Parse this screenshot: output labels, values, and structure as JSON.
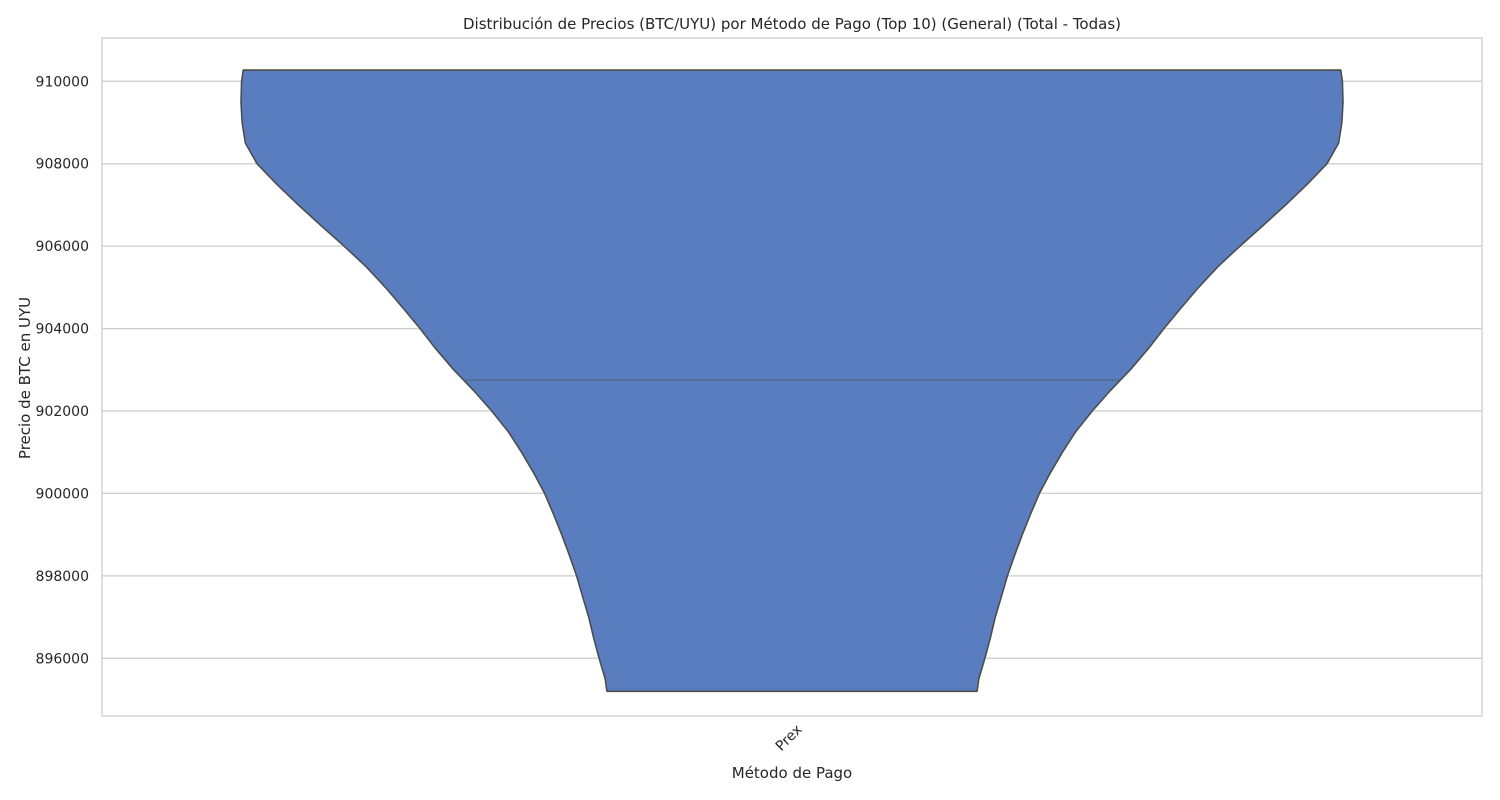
{
  "chart_data": {
    "type": "violin",
    "title": "Distribución de Precios (BTC/UYU) por Método de Pago (Top 10) (General) (Total - Todas)",
    "xlabel": "Método de Pago",
    "ylabel": "Precio de BTC en UYU",
    "categories": [
      "Prex"
    ],
    "ylim": [
      894600,
      911050
    ],
    "yticks": [
      896000,
      898000,
      900000,
      902000,
      904000,
      906000,
      908000,
      910000
    ],
    "grid": true,
    "colors": {
      "fill": "#5a7dbf",
      "edge": "#4d4d4d",
      "grid": "#cccccc",
      "axes_edge": "#cccccc"
    },
    "violins": [
      {
        "category": "Prex",
        "min": 895200,
        "max": 910270,
        "quartiles": [
          902750,
          910270
        ],
        "density_profile": [
          {
            "y": 910270,
            "density": 0.996
          },
          {
            "y": 910000,
            "density": 0.999
          },
          {
            "y": 909500,
            "density": 1.0
          },
          {
            "y": 909000,
            "density": 0.998
          },
          {
            "y": 908500,
            "density": 0.992
          },
          {
            "y": 908000,
            "density": 0.971
          },
          {
            "y": 907500,
            "density": 0.935
          },
          {
            "y": 907000,
            "density": 0.896
          },
          {
            "y": 906500,
            "density": 0.855
          },
          {
            "y": 906000,
            "density": 0.813
          },
          {
            "y": 905500,
            "density": 0.773
          },
          {
            "y": 905000,
            "density": 0.738
          },
          {
            "y": 904500,
            "density": 0.706
          },
          {
            "y": 904000,
            "density": 0.675
          },
          {
            "y": 903500,
            "density": 0.646
          },
          {
            "y": 903000,
            "density": 0.614
          },
          {
            "y": 902500,
            "density": 0.578
          },
          {
            "y": 902000,
            "density": 0.545
          },
          {
            "y": 901500,
            "density": 0.515
          },
          {
            "y": 901000,
            "density": 0.491
          },
          {
            "y": 900500,
            "density": 0.469
          },
          {
            "y": 900000,
            "density": 0.449
          },
          {
            "y": 899500,
            "density": 0.433
          },
          {
            "y": 899000,
            "density": 0.418
          },
          {
            "y": 898500,
            "density": 0.404
          },
          {
            "y": 898000,
            "density": 0.391
          },
          {
            "y": 897500,
            "density": 0.38
          },
          {
            "y": 897000,
            "density": 0.369
          },
          {
            "y": 896500,
            "density": 0.36
          },
          {
            "y": 896000,
            "density": 0.35
          },
          {
            "y": 895500,
            "density": 0.339
          },
          {
            "y": 895200,
            "density": 0.336
          }
        ]
      }
    ]
  }
}
